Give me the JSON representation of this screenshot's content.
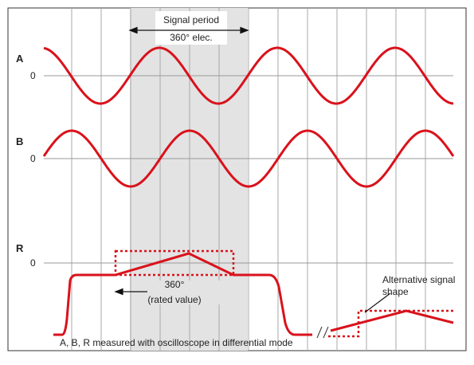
{
  "labels": {
    "a": "A",
    "b": "B",
    "r": "R",
    "zero_a": "0",
    "zero_b": "0",
    "zero_r": "0"
  },
  "signal_period": {
    "title": "Signal period",
    "value": "360° elec."
  },
  "rated": {
    "value": "360°",
    "note": "(rated value)"
  },
  "alternative": "Alternative signal shape",
  "footnote": "A, B, R measured with oscilloscope in differential mode"
}
